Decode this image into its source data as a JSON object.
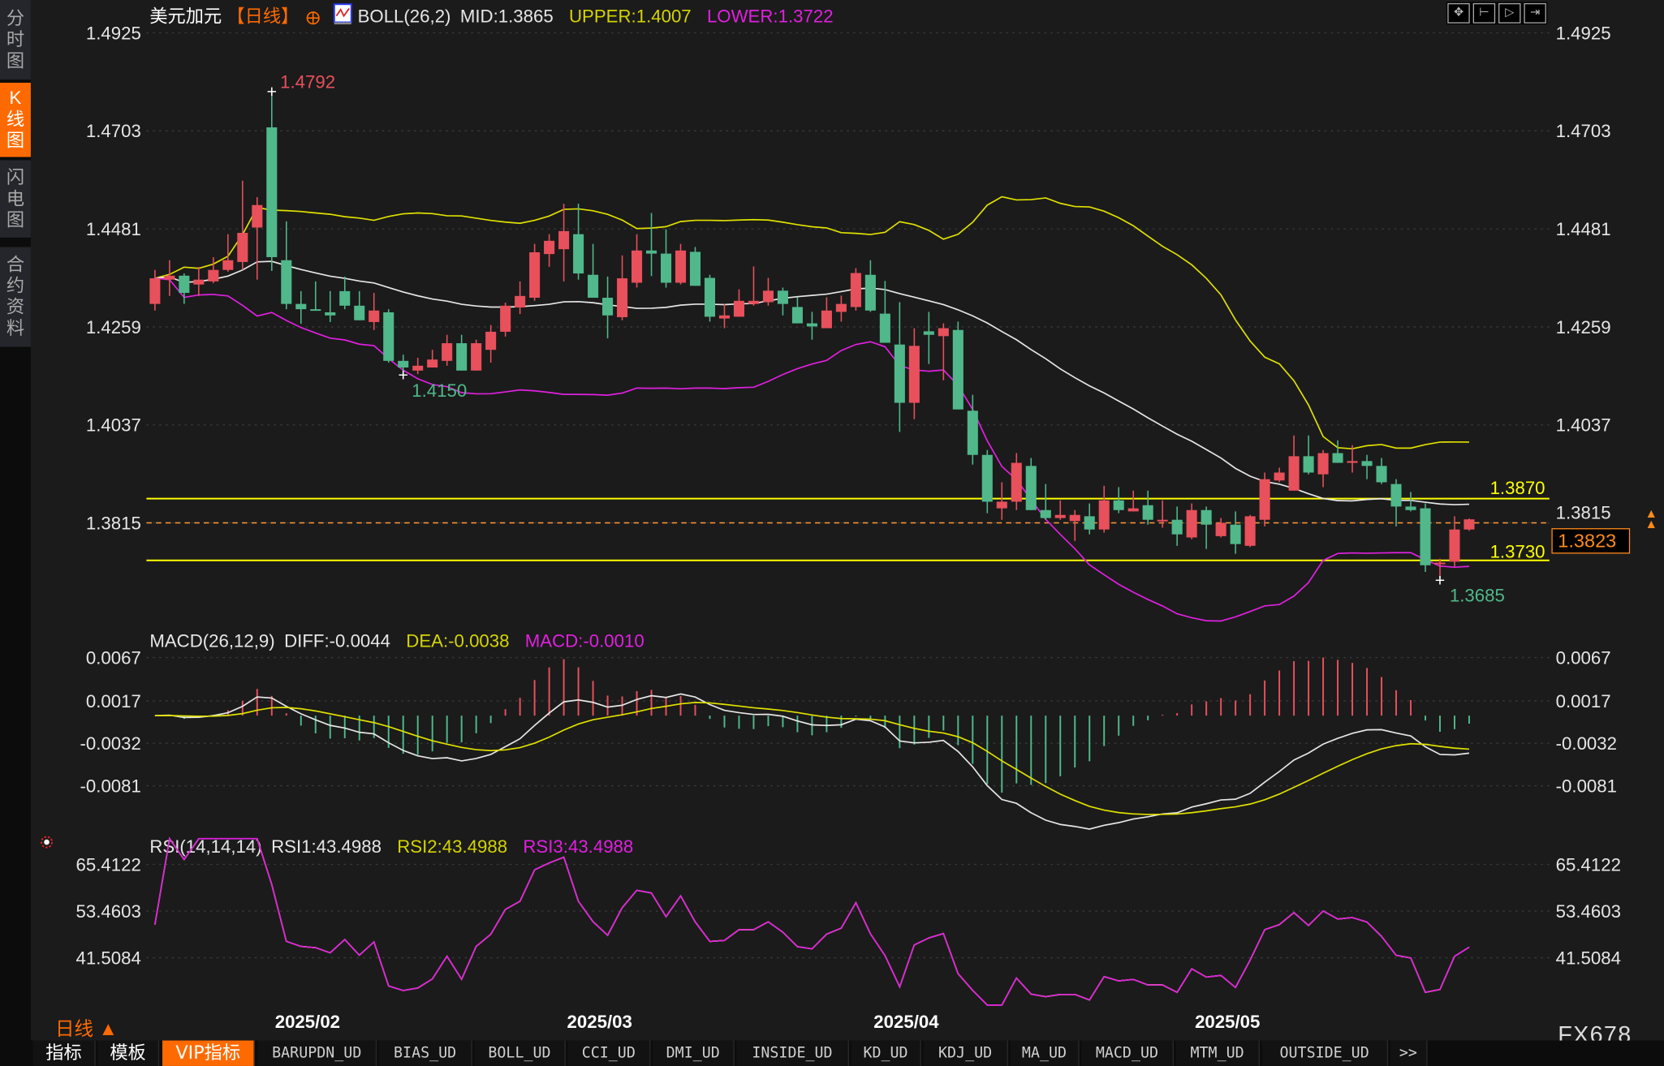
{
  "sidebar": {
    "items": [
      {
        "label": "分时图",
        "active": false
      },
      {
        "label": "K线图",
        "active": true
      },
      {
        "label": "闪电图",
        "active": false
      },
      {
        "label": "合约资料",
        "active": false
      }
    ]
  },
  "header": {
    "symbol": "美元加元",
    "period": "【日线】",
    "indicator": "BOLL(26,2)",
    "mid": "MID:1.3865",
    "upper": "UPPER:1.4007",
    "lower": "LOWER:1.3722"
  },
  "toolbar": {
    "icons": [
      "crosshair-icon",
      "zoom-start-icon",
      "zoom-end-icon",
      "scroll-right-icon"
    ]
  },
  "macd_header": {
    "name": "MACD(26,12,9)",
    "diff": "DIFF:-0.0044",
    "dea": "DEA:-0.0038",
    "macd": "MACD:-0.0010"
  },
  "rsi_header": {
    "name": "RSI(14,14,14)",
    "rsi1": "RSI1:43.4988",
    "rsi2": "RSI2:43.4988",
    "rsi3": "RSI3:43.4988"
  },
  "colors": {
    "up": "#e8505b",
    "down": "#50b88a",
    "upper": "#e0e000",
    "mid": "#e6e6e6",
    "lower": "#e020e0",
    "accent": "#ff6a00",
    "hline": "#ffff00"
  },
  "annotations": {
    "high_label": "1.4792",
    "low_label_1": "1.4150",
    "low_label_2": "1.3685",
    "hline_1": "1.3870",
    "hline_2": "1.3730",
    "current_price": "1.3823",
    "dashed_price_label": "1.3815"
  },
  "period_label": "日线",
  "brand": "FX678",
  "tabs": [
    "指标",
    "模板",
    "VIP指标",
    "BARUPDN_UD",
    "BIAS_UD",
    "BOLL_UD",
    "CCI_UD",
    "DMI_UD",
    "INSIDE_UD",
    "KD_UD",
    "KDJ_UD",
    "MA_UD",
    "MACD_UD",
    "MTM_UD",
    "OUTSIDE_UD",
    ">>"
  ],
  "chart_data": [
    {
      "type": "candlestick",
      "name": "USD/CAD daily",
      "yticks": [
        "1.4925",
        "1.4703",
        "1.4481",
        "1.4259",
        "1.4037",
        "1.3815"
      ],
      "ylim": [
        1.36,
        1.4925
      ],
      "x_labels": [
        {
          "index": 8,
          "label": "2025/02"
        },
        {
          "index": 28,
          "label": "2025/03"
        },
        {
          "index": 49,
          "label": "2025/04"
        },
        {
          "index": 71,
          "label": "2025/05"
        }
      ],
      "hlines": [
        1.387,
        1.373
      ],
      "dashed_line": 1.3815,
      "ohlc": [
        [
          1.4311,
          1.4388,
          1.4296,
          1.4369
        ],
        [
          1.4366,
          1.441,
          1.4329,
          1.4375
        ],
        [
          1.4375,
          1.438,
          1.4311,
          1.4336
        ],
        [
          1.4355,
          1.4395,
          1.4329,
          1.4366
        ],
        [
          1.4362,
          1.4417,
          1.4358,
          1.4388
        ],
        [
          1.4388,
          1.4469,
          1.4384,
          1.441
        ],
        [
          1.4406,
          1.459,
          1.4388,
          1.4472
        ],
        [
          1.4484,
          1.4553,
          1.4366,
          1.4535
        ],
        [
          1.4711,
          1.4792,
          1.4386,
          1.4417
        ],
        [
          1.441,
          1.4498,
          1.4299,
          1.4311
        ],
        [
          1.4311,
          1.434,
          1.4266,
          1.4299
        ],
        [
          1.4299,
          1.4362,
          1.4296,
          1.4296
        ],
        [
          1.4292,
          1.434,
          1.427,
          1.4285
        ],
        [
          1.434,
          1.4373,
          1.4299,
          1.4307
        ],
        [
          1.4307,
          1.434,
          1.4274,
          1.4274
        ],
        [
          1.427,
          1.4336,
          1.4252,
          1.4296
        ],
        [
          1.4292,
          1.4299,
          1.4178,
          1.4182
        ],
        [
          1.4182,
          1.4196,
          1.415,
          1.4167
        ],
        [
          1.416,
          1.4189,
          1.4152,
          1.4171
        ],
        [
          1.4167,
          1.4207,
          1.4167,
          1.4185
        ],
        [
          1.4182,
          1.4241,
          1.4171,
          1.4222
        ],
        [
          1.4222,
          1.4241,
          1.416,
          1.416
        ],
        [
          1.416,
          1.423,
          1.416,
          1.4222
        ],
        [
          1.4207,
          1.4263,
          1.4178,
          1.4248
        ],
        [
          1.4248,
          1.4314,
          1.4237,
          1.4307
        ],
        [
          1.4303,
          1.4362,
          1.4288,
          1.4329
        ],
        [
          1.4325,
          1.4447,
          1.4318,
          1.4428
        ],
        [
          1.4424,
          1.4469,
          1.4395,
          1.4454
        ],
        [
          1.4435,
          1.4538,
          1.4362,
          1.4476
        ],
        [
          1.4469,
          1.4538,
          1.4366,
          1.438
        ],
        [
          1.4377,
          1.4447,
          1.4325,
          1.4325
        ],
        [
          1.4325,
          1.4373,
          1.4233,
          1.4285
        ],
        [
          1.4281,
          1.4421,
          1.4274,
          1.4369
        ],
        [
          1.4359,
          1.4469,
          1.4348,
          1.4432
        ],
        [
          1.4432,
          1.4517,
          1.4374,
          1.4425
        ],
        [
          1.4425,
          1.448,
          1.4348,
          1.4359
        ],
        [
          1.4359,
          1.4447,
          1.4355,
          1.4432
        ],
        [
          1.4429,
          1.444,
          1.4352,
          1.4352
        ],
        [
          1.437,
          1.4377,
          1.4271,
          1.4282
        ],
        [
          1.4278,
          1.4311,
          1.4256,
          1.4285
        ],
        [
          1.4282,
          1.4344,
          1.4282,
          1.4318
        ],
        [
          1.4311,
          1.4396,
          1.4307,
          1.4318
        ],
        [
          1.4315,
          1.437,
          1.4307,
          1.4341
        ],
        [
          1.4341,
          1.4348,
          1.4285,
          1.4311
        ],
        [
          1.4304,
          1.4326,
          1.4267,
          1.4267
        ],
        [
          1.4267,
          1.4293,
          1.423,
          1.426
        ],
        [
          1.4256,
          1.4326,
          1.4256,
          1.4296
        ],
        [
          1.4293,
          1.433,
          1.4271,
          1.4311
        ],
        [
          1.4304,
          1.4392,
          1.4296,
          1.4381
        ],
        [
          1.4377,
          1.441,
          1.4293,
          1.4296
        ],
        [
          1.4289,
          1.4363,
          1.4223,
          1.4223
        ],
        [
          1.4219,
          1.4315,
          1.4021,
          1.4087
        ],
        [
          1.4087,
          1.4256,
          1.405,
          1.4216
        ],
        [
          1.4249,
          1.4293,
          1.4175,
          1.4241
        ],
        [
          1.4238,
          1.4267,
          1.4138,
          1.4256
        ],
        [
          1.4252,
          1.4271,
          1.4072,
          1.4072
        ],
        [
          1.4069,
          1.4105,
          1.3947,
          1.3969
        ],
        [
          1.3969,
          1.398,
          1.3837,
          1.3863
        ],
        [
          1.3848,
          1.3907,
          1.3822,
          1.3863
        ],
        [
          1.3863,
          1.3973,
          1.3844,
          1.3951
        ],
        [
          1.3944,
          1.3962,
          1.3844,
          1.3844
        ],
        [
          1.3844,
          1.3903,
          1.3822,
          1.3826
        ],
        [
          1.3826,
          1.3866,
          1.3822,
          1.3833
        ],
        [
          1.3819,
          1.3844,
          1.3774,
          1.3833
        ],
        [
          1.383,
          1.3859,
          1.3789,
          1.38
        ],
        [
          1.38,
          1.3899,
          1.3793,
          1.3866
        ],
        [
          1.3866,
          1.3896,
          1.3837,
          1.3844
        ],
        [
          1.3841,
          1.3888,
          1.3841,
          1.3848
        ],
        [
          1.3855,
          1.3888,
          1.3811,
          1.3822
        ],
        [
          1.3819,
          1.3866,
          1.3804,
          1.3822
        ],
        [
          1.3822,
          1.3852,
          1.3763,
          1.3789
        ],
        [
          1.3782,
          1.3859,
          1.3778,
          1.3844
        ],
        [
          1.3844,
          1.3852,
          1.3756,
          1.3811
        ],
        [
          1.3785,
          1.3826,
          1.3782,
          1.3815
        ],
        [
          1.3811,
          1.3841,
          1.3745,
          1.3767
        ],
        [
          1.3763,
          1.3833,
          1.376,
          1.383
        ],
        [
          1.3822,
          1.3929,
          1.3807,
          1.3914
        ],
        [
          1.3911,
          1.394,
          1.3907,
          1.3929
        ],
        [
          1.3888,
          1.4013,
          1.3888,
          1.3966
        ],
        [
          1.3966,
          1.4013,
          1.3925,
          1.3929
        ],
        [
          1.3925,
          1.398,
          1.3896,
          1.3973
        ],
        [
          1.3973,
          1.4002,
          1.3951,
          1.3951
        ],
        [
          1.3951,
          1.3991,
          1.3929,
          1.3955
        ],
        [
          1.3955,
          1.3969,
          1.3914,
          1.3944
        ],
        [
          1.3944,
          1.3962,
          1.3903,
          1.3907
        ],
        [
          1.3903,
          1.3914,
          1.3807,
          1.3852
        ],
        [
          1.3852,
          1.3885,
          1.3841,
          1.3844
        ],
        [
          1.3848,
          1.3859,
          1.3704,
          1.3719
        ],
        [
          1.3722,
          1.3734,
          1.3685,
          1.3725
        ],
        [
          1.3727,
          1.383,
          1.3716,
          1.38
        ],
        [
          1.38,
          1.3825,
          1.3797,
          1.3823
        ]
      ]
    },
    {
      "type": "bar+line",
      "name": "MACD",
      "yticks": [
        "0.0067",
        "0.0017",
        "-0.0032",
        "-0.0081"
      ]
    },
    {
      "type": "line",
      "name": "RSI",
      "yticks": [
        "65.4122",
        "53.4603",
        "41.5084"
      ]
    }
  ]
}
